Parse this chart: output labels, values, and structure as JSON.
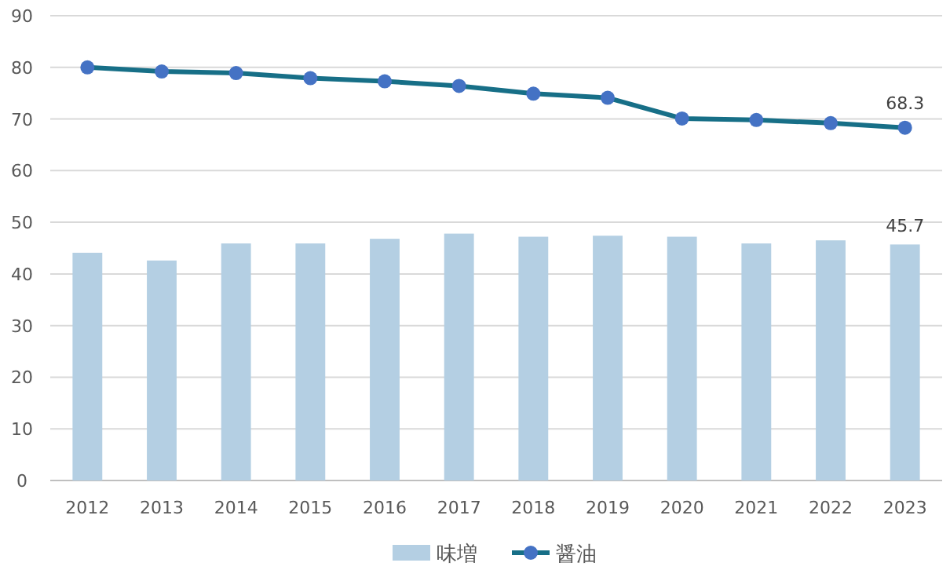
{
  "chart_data": {
    "type": "bar",
    "categories": [
      "2012",
      "2013",
      "2014",
      "2015",
      "2016",
      "2017",
      "2018",
      "2019",
      "2020",
      "2021",
      "2022",
      "2023"
    ],
    "series": [
      {
        "name": "味増",
        "color": "#b4cfe3",
        "values": [
          44.1,
          42.6,
          45.9,
          45.9,
          46.8,
          47.8,
          47.2,
          47.4,
          47.2,
          45.9,
          46.5,
          45.7
        ],
        "value_labels": [
          null,
          null,
          null,
          null,
          null,
          null,
          null,
          null,
          null,
          null,
          null,
          "45.7"
        ]
      },
      {
        "name": "醤油",
        "type": "line",
        "color": "#176f87",
        "values": [
          80.0,
          79.2,
          78.9,
          77.9,
          77.3,
          76.4,
          74.9,
          74.1,
          70.1,
          69.8,
          69.2,
          68.3
        ],
        "value_labels": [
          null,
          null,
          null,
          null,
          null,
          null,
          null,
          null,
          null,
          null,
          null,
          "68.3"
        ]
      }
    ],
    "ylim": [
      0,
      90
    ],
    "yticks": [
      0,
      10,
      20,
      30,
      40,
      50,
      60,
      70,
      80,
      90
    ],
    "grid": "y",
    "legend": "bottom",
    "marker": "circle",
    "line_style": "solid"
  }
}
